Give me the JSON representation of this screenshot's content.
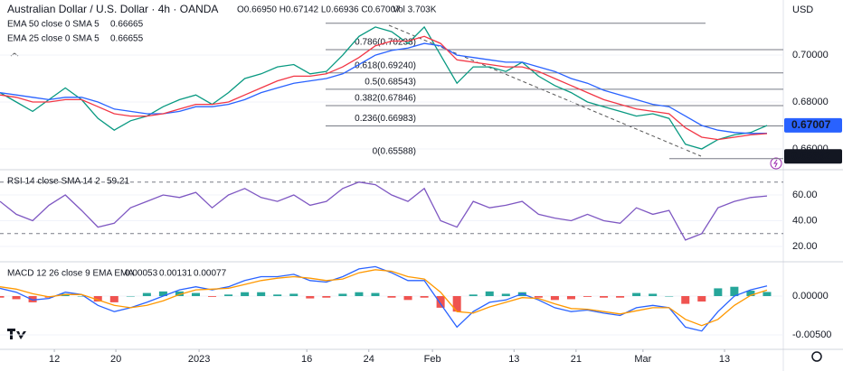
{
  "chart_data": [
    {
      "type": "line",
      "title": "Australian Dollar / U.S. Dollar · 4h · OANDA",
      "ohlc": "O0.66950 H0.67142 L0.66936 C0.67007",
      "volume": "Vol 3.703K",
      "currency": "USD",
      "x": [
        0,
        1,
        2,
        3,
        4,
        5,
        6,
        7,
        8,
        9,
        10,
        11,
        12,
        13,
        14,
        15,
        16,
        17,
        18,
        19,
        20,
        21,
        22,
        23,
        24,
        25,
        26,
        27,
        28,
        29,
        30,
        31,
        32,
        33,
        34,
        35,
        36,
        37,
        38,
        39,
        40,
        41,
        42,
        43,
        44,
        45,
        46,
        47
      ],
      "xlim": [
        0,
        48
      ],
      "ylim": [
        0.6523,
        0.7235
      ],
      "yticks": [
        {
          "value": 0.66,
          "label": "0.66000"
        },
        {
          "value": 0.68,
          "label": "0.68000"
        },
        {
          "value": 0.7,
          "label": "0.70000"
        }
      ],
      "series": [
        {
          "color": "#089981",
          "values": [
            0.684,
            0.68,
            0.676,
            0.681,
            0.686,
            0.681,
            0.673,
            0.668,
            0.672,
            0.674,
            0.678,
            0.681,
            0.683,
            0.679,
            0.684,
            0.69,
            0.692,
            0.695,
            0.696,
            0.692,
            0.693,
            0.7,
            0.708,
            0.712,
            0.71,
            0.705,
            0.712,
            0.7,
            0.688,
            0.695,
            0.695,
            0.693,
            0.697,
            0.691,
            0.687,
            0.684,
            0.68,
            0.678,
            0.676,
            0.674,
            0.675,
            0.673,
            0.662,
            0.66,
            0.664,
            0.666,
            0.667,
            0.67
          ]
        },
        {
          "name": "EMA 50 close 0 SMA 5",
          "last": 0.66665,
          "color": "#2962ff",
          "values": [
            0.684,
            0.683,
            0.682,
            0.681,
            0.682,
            0.682,
            0.68,
            0.677,
            0.676,
            0.675,
            0.675,
            0.676,
            0.678,
            0.678,
            0.679,
            0.681,
            0.684,
            0.686,
            0.688,
            0.689,
            0.69,
            0.692,
            0.696,
            0.7,
            0.702,
            0.703,
            0.705,
            0.704,
            0.7,
            0.699,
            0.698,
            0.697,
            0.697,
            0.695,
            0.693,
            0.69,
            0.688,
            0.685,
            0.683,
            0.681,
            0.679,
            0.678,
            0.674,
            0.67,
            0.668,
            0.667,
            0.6666,
            0.66665
          ]
        },
        {
          "name": "EMA 25 close 0 SMA 5",
          "last": 0.66655,
          "color": "#f23645",
          "values": [
            0.683,
            0.682,
            0.68,
            0.68,
            0.681,
            0.681,
            0.678,
            0.675,
            0.674,
            0.674,
            0.675,
            0.677,
            0.679,
            0.679,
            0.68,
            0.683,
            0.686,
            0.689,
            0.691,
            0.691,
            0.692,
            0.695,
            0.699,
            0.704,
            0.706,
            0.706,
            0.708,
            0.705,
            0.698,
            0.697,
            0.696,
            0.695,
            0.695,
            0.693,
            0.69,
            0.687,
            0.684,
            0.681,
            0.679,
            0.677,
            0.676,
            0.675,
            0.669,
            0.665,
            0.664,
            0.665,
            0.666,
            0.66655
          ]
        }
      ],
      "fib_high": 0.7136,
      "fib_levels": [
        {
          "value": 0.70233,
          "label": "0.786(0.70233)"
        },
        {
          "value": 0.6924,
          "label": "0.618(0.69240)"
        },
        {
          "value": 0.68543,
          "label": "0.5(0.68543)"
        },
        {
          "value": 0.67846,
          "label": "0.382(0.67846)"
        },
        {
          "value": 0.66983,
          "label": "0.236(0.66983)"
        },
        {
          "value": 0.65588,
          "label": "0(0.65588)"
        }
      ],
      "price_marks": [
        {
          "value": 0.67007,
          "color": "#2962ff"
        },
        {
          "value": 0.65682,
          "color": "#131722"
        }
      ]
    },
    {
      "type": "line",
      "title": "RSI 14 close SMA 14 2",
      "last": 59.21,
      "x": [
        0,
        1,
        2,
        3,
        4,
        5,
        6,
        7,
        8,
        9,
        10,
        11,
        12,
        13,
        14,
        15,
        16,
        17,
        18,
        19,
        20,
        21,
        22,
        23,
        24,
        25,
        26,
        27,
        28,
        29,
        30,
        31,
        32,
        33,
        34,
        35,
        36,
        37,
        38,
        39,
        40,
        41,
        42,
        43,
        44,
        45,
        46,
        47
      ],
      "xlim": [
        0,
        48
      ],
      "ylim": [
        10.2,
        78.2
      ],
      "yticks": [
        {
          "value": 20,
          "label": "20.00"
        },
        {
          "value": 40,
          "label": "40.00"
        },
        {
          "value": 60,
          "label": "60.00"
        }
      ],
      "bands": [
        30,
        70
      ],
      "series": [
        {
          "color": "#7e57c2",
          "values": [
            55,
            45,
            40,
            52,
            60,
            48,
            35,
            38,
            50,
            55,
            60,
            58,
            62,
            50,
            60,
            65,
            58,
            55,
            60,
            52,
            55,
            65,
            70,
            68,
            60,
            55,
            65,
            40,
            35,
            55,
            50,
            52,
            55,
            45,
            42,
            40,
            45,
            40,
            38,
            50,
            45,
            48,
            25,
            30,
            50,
            55,
            58,
            59.21
          ]
        }
      ]
    },
    {
      "type": "line",
      "title": "MACD 12 26 close 9 EMA EMA",
      "x": [
        0,
        1,
        2,
        3,
        4,
        5,
        6,
        7,
        8,
        9,
        10,
        11,
        12,
        13,
        14,
        15,
        16,
        17,
        18,
        19,
        20,
        21,
        22,
        23,
        24,
        25,
        26,
        27,
        28,
        29,
        30,
        31,
        32,
        33,
        34,
        35,
        36,
        37,
        38,
        39,
        40,
        41,
        42,
        43,
        44,
        45,
        46,
        47
      ],
      "xlim": [
        0,
        48
      ],
      "xticks": [
        {
          "value": 3.33,
          "label": "12"
        },
        {
          "value": 7.1,
          "label": "20"
        },
        {
          "value": 12.2,
          "label": "2023"
        },
        {
          "value": 18.8,
          "label": "16"
        },
        {
          "value": 22.6,
          "label": "24"
        },
        {
          "value": 26.5,
          "label": "Feb"
        },
        {
          "value": 31.5,
          "label": "13"
        },
        {
          "value": 35.3,
          "label": "21"
        },
        {
          "value": 39.4,
          "label": "Mar"
        },
        {
          "value": 44.4,
          "label": "13"
        }
      ],
      "ylim": [
        -0.00663,
        0.00419
      ],
      "yticks": [
        {
          "value": -0.005,
          "label": "-0.00500"
        },
        {
          "value": 0,
          "label": "0.00000"
        }
      ],
      "series": [
        {
          "type": "bar",
          "last": 0.00053,
          "color": "#26a69a",
          "color_down": "#ef5350",
          "values": [
            -0.0002,
            -0.0004,
            -0.0008,
            -0.0002,
            0.0003,
            0,
            -0.0007,
            -0.0008,
            0,
            0.0004,
            0.0006,
            0.0006,
            0.0004,
            -0.0001,
            0.0002,
            0.0005,
            0.0005,
            0.0002,
            0.0003,
            -0.0003,
            -0.0002,
            0.0003,
            0.0005,
            0.0004,
            -0.0002,
            -0.0005,
            -0.0002,
            -0.0015,
            -0.002,
            0.0002,
            0.0006,
            0.0003,
            0.0005,
            -0.0002,
            -0.0005,
            -0.0004,
            -0.0001,
            -0.0002,
            -0.0002,
            0.0004,
            0.0003,
            0,
            -0.001,
            -0.0007,
            0.001,
            0.0012,
            0.0007,
            0.00053
          ]
        },
        {
          "last": 0.00131,
          "color": "#2962ff",
          "values": [
            0.001,
            0.0005,
            -0.0005,
            -0.0003,
            0.0005,
            0.0002,
            -0.0012,
            -0.002,
            -0.0015,
            -0.0008,
            0,
            0.0008,
            0.0012,
            0.0008,
            0.0012,
            0.002,
            0.0025,
            0.0025,
            0.0028,
            0.002,
            0.0018,
            0.0025,
            0.0035,
            0.0038,
            0.003,
            0.002,
            0.002,
            -0.001,
            -0.004,
            -0.002,
            -0.0008,
            -0.0005,
            0.0003,
            -0.0005,
            -0.0015,
            -0.002,
            -0.0018,
            -0.0022,
            -0.0025,
            -0.0015,
            -0.0012,
            -0.0015,
            -0.004,
            -0.0045,
            -0.002,
            0,
            0.0008,
            0.00131
          ]
        },
        {
          "last": 0.00077,
          "color": "#ff9800",
          "values": [
            0.0012,
            0.0009,
            0.0003,
            -0.0001,
            0.0002,
            0.0002,
            -0.0005,
            -0.0012,
            -0.0015,
            -0.0012,
            -0.0006,
            0.0002,
            0.0008,
            0.0009,
            0.001,
            0.0015,
            0.002,
            0.0023,
            0.0025,
            0.0023,
            0.002,
            0.0022,
            0.003,
            0.0034,
            0.0032,
            0.0025,
            0.0022,
            0.0005,
            -0.002,
            -0.0022,
            -0.0014,
            -0.0008,
            -0.0002,
            -0.0003,
            -0.001,
            -0.0016,
            -0.0017,
            -0.002,
            -0.0023,
            -0.0019,
            -0.0015,
            -0.0015,
            -0.003,
            -0.0038,
            -0.003,
            -0.0012,
            0.0001,
            0.00077
          ]
        }
      ]
    }
  ]
}
